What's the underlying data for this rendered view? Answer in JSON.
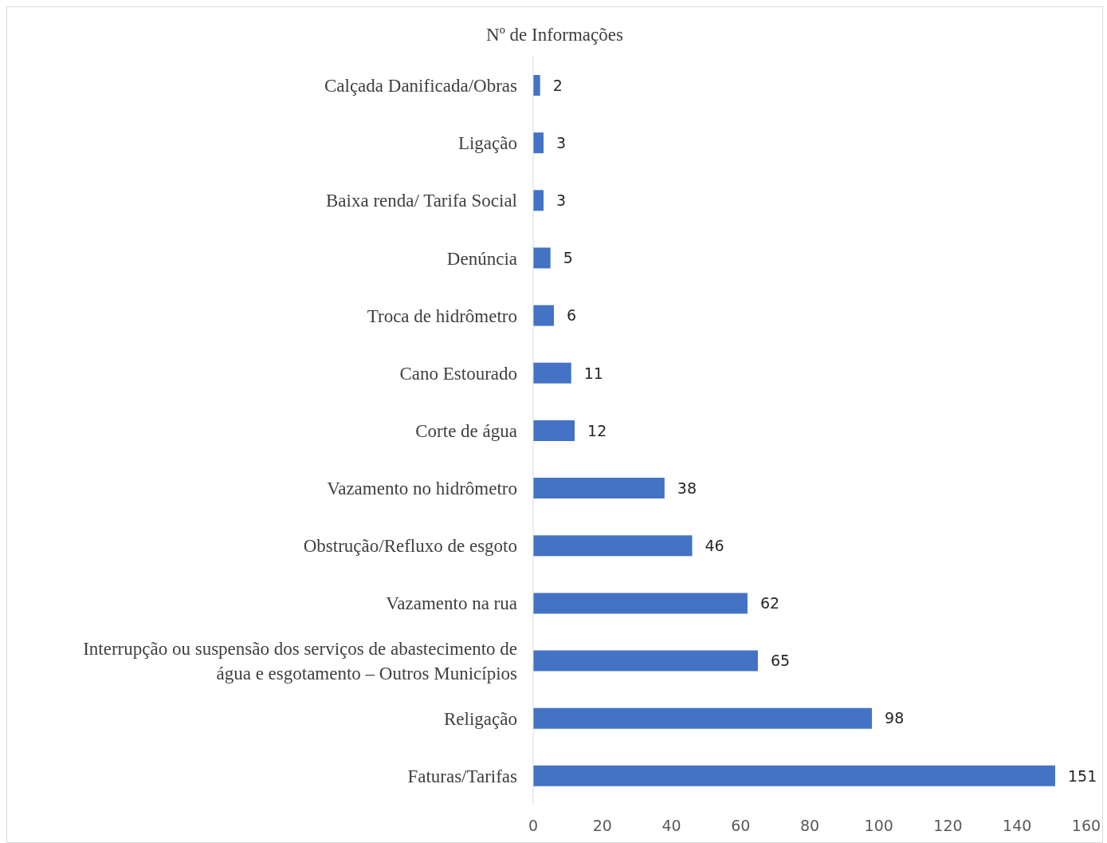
{
  "chart_data": {
    "type": "bar",
    "orientation": "horizontal",
    "title": "Nº de Informações",
    "categories": [
      "Calçada Danificada/Obras",
      "Ligação",
      "Baixa renda/ Tarifa Social",
      "Denúncia",
      "Troca de hidrômetro",
      "Cano Estourado",
      "Corte de água",
      "Vazamento no hidrômetro",
      "Obstrução/Refluxo de esgoto",
      "Vazamento na rua",
      "Interrupção ou suspensão dos serviços de abastecimento de água e esgotamento –  Outros Municípios",
      "Religação",
      "Faturas/Tarifas"
    ],
    "values": [
      2,
      3,
      3,
      5,
      6,
      11,
      12,
      38,
      46,
      62,
      65,
      98,
      151
    ],
    "color": "#4472c4",
    "xlim": [
      0,
      160
    ],
    "xticks": [
      0,
      20,
      40,
      60,
      80,
      100,
      120,
      140,
      160
    ],
    "grid": false,
    "legend": false,
    "data_labels": true
  }
}
